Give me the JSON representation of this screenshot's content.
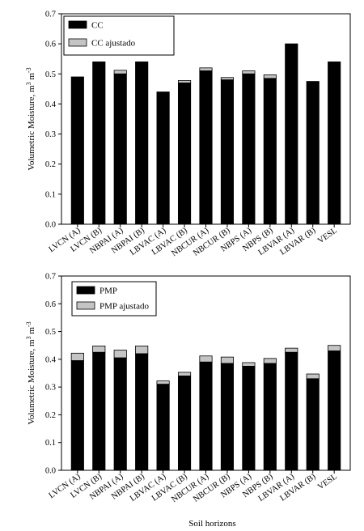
{
  "colors": {
    "black_bar": "#000000",
    "gray_cap": "#c4c4c4",
    "axis": "#000000"
  },
  "chart_data": [
    {
      "type": "bar",
      "stacked": true,
      "categories": [
        "LVCN (A)",
        "LVCN (B)",
        "NBPAI (A)",
        "NBPAI (B)",
        "LBVAC (A)",
        "LBVAC (B)",
        "NBCUR (A)",
        "NBCUR (B)",
        "NBPS (A)",
        "NBPS (B)",
        "LBVAR (A)",
        "LBVAR (B)",
        "VESL"
      ],
      "series": [
        {
          "name": "CC",
          "values": [
            0.49,
            0.54,
            0.5,
            0.54,
            0.44,
            0.47,
            0.51,
            0.48,
            0.5,
            0.485,
            0.6,
            0.475,
            0.54
          ]
        },
        {
          "name": "CC ajustado",
          "values": [
            0,
            0,
            0.012,
            0,
            0,
            0.008,
            0.01,
            0.008,
            0.01,
            0.012,
            0,
            0,
            0
          ]
        }
      ],
      "title": "",
      "xlabel": "",
      "ylabel_main": "Volumetric Moisture, m",
      "ylabel_sup1": "3",
      "ylabel_mid": " m",
      "ylabel_sup2": "-3",
      "ylim": [
        0,
        0.7
      ],
      "yticks": [
        "0.0",
        "0.1",
        "0.2",
        "0.3",
        "0.4",
        "0.5",
        "0.6",
        "0.7"
      ],
      "legend_position": "top-left"
    },
    {
      "type": "bar",
      "stacked": true,
      "categories": [
        "LVCN (A)",
        "LVCN (B)",
        "NBPAI (A)",
        "NBPAI (B)",
        "LBVAC (A)",
        "LBVAC (B)",
        "NBCUR (A)",
        "NBCUR (B)",
        "NBPS (A)",
        "NBPS (B)",
        "LBVAR (A)",
        "LBVAR (B)",
        "VESL"
      ],
      "series": [
        {
          "name": "PMP",
          "values": [
            0.395,
            0.425,
            0.405,
            0.42,
            0.31,
            0.34,
            0.39,
            0.385,
            0.375,
            0.385,
            0.425,
            0.33,
            0.43
          ]
        },
        {
          "name": "PMP ajustado",
          "values": [
            0.027,
            0.023,
            0.028,
            0.028,
            0.012,
            0.013,
            0.022,
            0.023,
            0.013,
            0.018,
            0.015,
            0.017,
            0.02
          ]
        }
      ],
      "title": "",
      "xlabel": "Soil horizons",
      "ylabel_main": "Volumetric Moisture, m",
      "ylabel_sup1": "3",
      "ylabel_mid": " m",
      "ylabel_sup2": "-3",
      "ylim": [
        0,
        0.7
      ],
      "yticks": [
        "0.0",
        "0.1",
        "0.2",
        "0.3",
        "0.4",
        "0.5",
        "0.6",
        "0.7"
      ],
      "legend_position": "top-left"
    }
  ]
}
